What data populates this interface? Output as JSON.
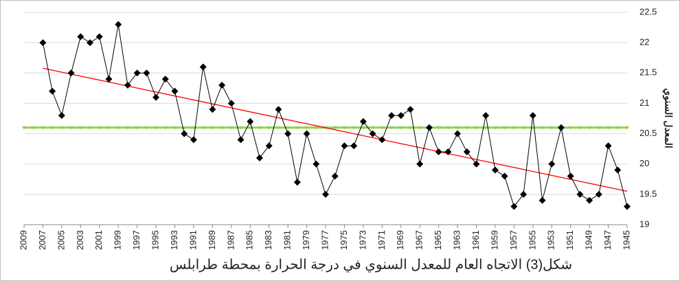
{
  "chart_data": {
    "type": "line",
    "title": "شكل(3) الاتجاه العام للمعدل السنوي في درجة الحرارة بمحطة طرابلس",
    "y_label": "المعدل السنوي",
    "x": [
      2007,
      2006,
      2005,
      2004,
      2003,
      2002,
      2001,
      2000,
      1999,
      1998,
      1997,
      1996,
      1995,
      1994,
      1993,
      1992,
      1991,
      1990,
      1989,
      1988,
      1987,
      1986,
      1985,
      1984,
      1983,
      1982,
      1981,
      1980,
      1979,
      1978,
      1977,
      1976,
      1975,
      1974,
      1973,
      1972,
      1971,
      1970,
      1969,
      1968,
      1967,
      1966,
      1965,
      1964,
      1963,
      1962,
      1961,
      1960,
      1959,
      1958,
      1957,
      1956,
      1955,
      1954,
      1953,
      1952,
      1951,
      1950,
      1949,
      1948,
      1947,
      1946,
      1945
    ],
    "series": [
      {
        "color": "#000000",
        "values": [
          22.0,
          21.2,
          20.8,
          21.5,
          22.1,
          22.0,
          22.1,
          21.4,
          22.3,
          21.3,
          21.5,
          21.5,
          21.1,
          21.4,
          21.2,
          20.5,
          20.4,
          21.6,
          20.9,
          21.3,
          21.0,
          20.4,
          20.7,
          20.1,
          20.3,
          20.9,
          20.5,
          19.7,
          20.5,
          20.0,
          19.5,
          19.8,
          20.3,
          20.3,
          20.7,
          20.5,
          20.4,
          20.8,
          20.8,
          20.9,
          20.0,
          20.6,
          20.2,
          20.2,
          20.5,
          20.2,
          20.0,
          20.8,
          19.9,
          19.8,
          19.3,
          19.5,
          20.8,
          19.4,
          20.0,
          20.6,
          19.8,
          19.5,
          19.4,
          19.5,
          20.3,
          19.9,
          19.3
        ]
      }
    ],
    "mean_line": {
      "value": 20.6,
      "color": "#92d050"
    },
    "trendline": {
      "x": [
        2007,
        1945
      ],
      "values": [
        21.58,
        19.55
      ],
      "color": "#ff0000"
    },
    "xlim": [
      2009,
      1945
    ],
    "xticks": [
      2009,
      2007,
      2005,
      2003,
      2001,
      1999,
      1997,
      1995,
      1993,
      1991,
      1989,
      1987,
      1985,
      1983,
      1981,
      1979,
      1977,
      1975,
      1973,
      1971,
      1969,
      1967,
      1965,
      1963,
      1961,
      1959,
      1957,
      1955,
      1953,
      1951,
      1949,
      1947,
      1945
    ],
    "ylim": [
      19,
      22.5
    ],
    "yticks": [
      19,
      19.5,
      20,
      20.5,
      21,
      21.5,
      22,
      22.5
    ],
    "grid": true
  }
}
